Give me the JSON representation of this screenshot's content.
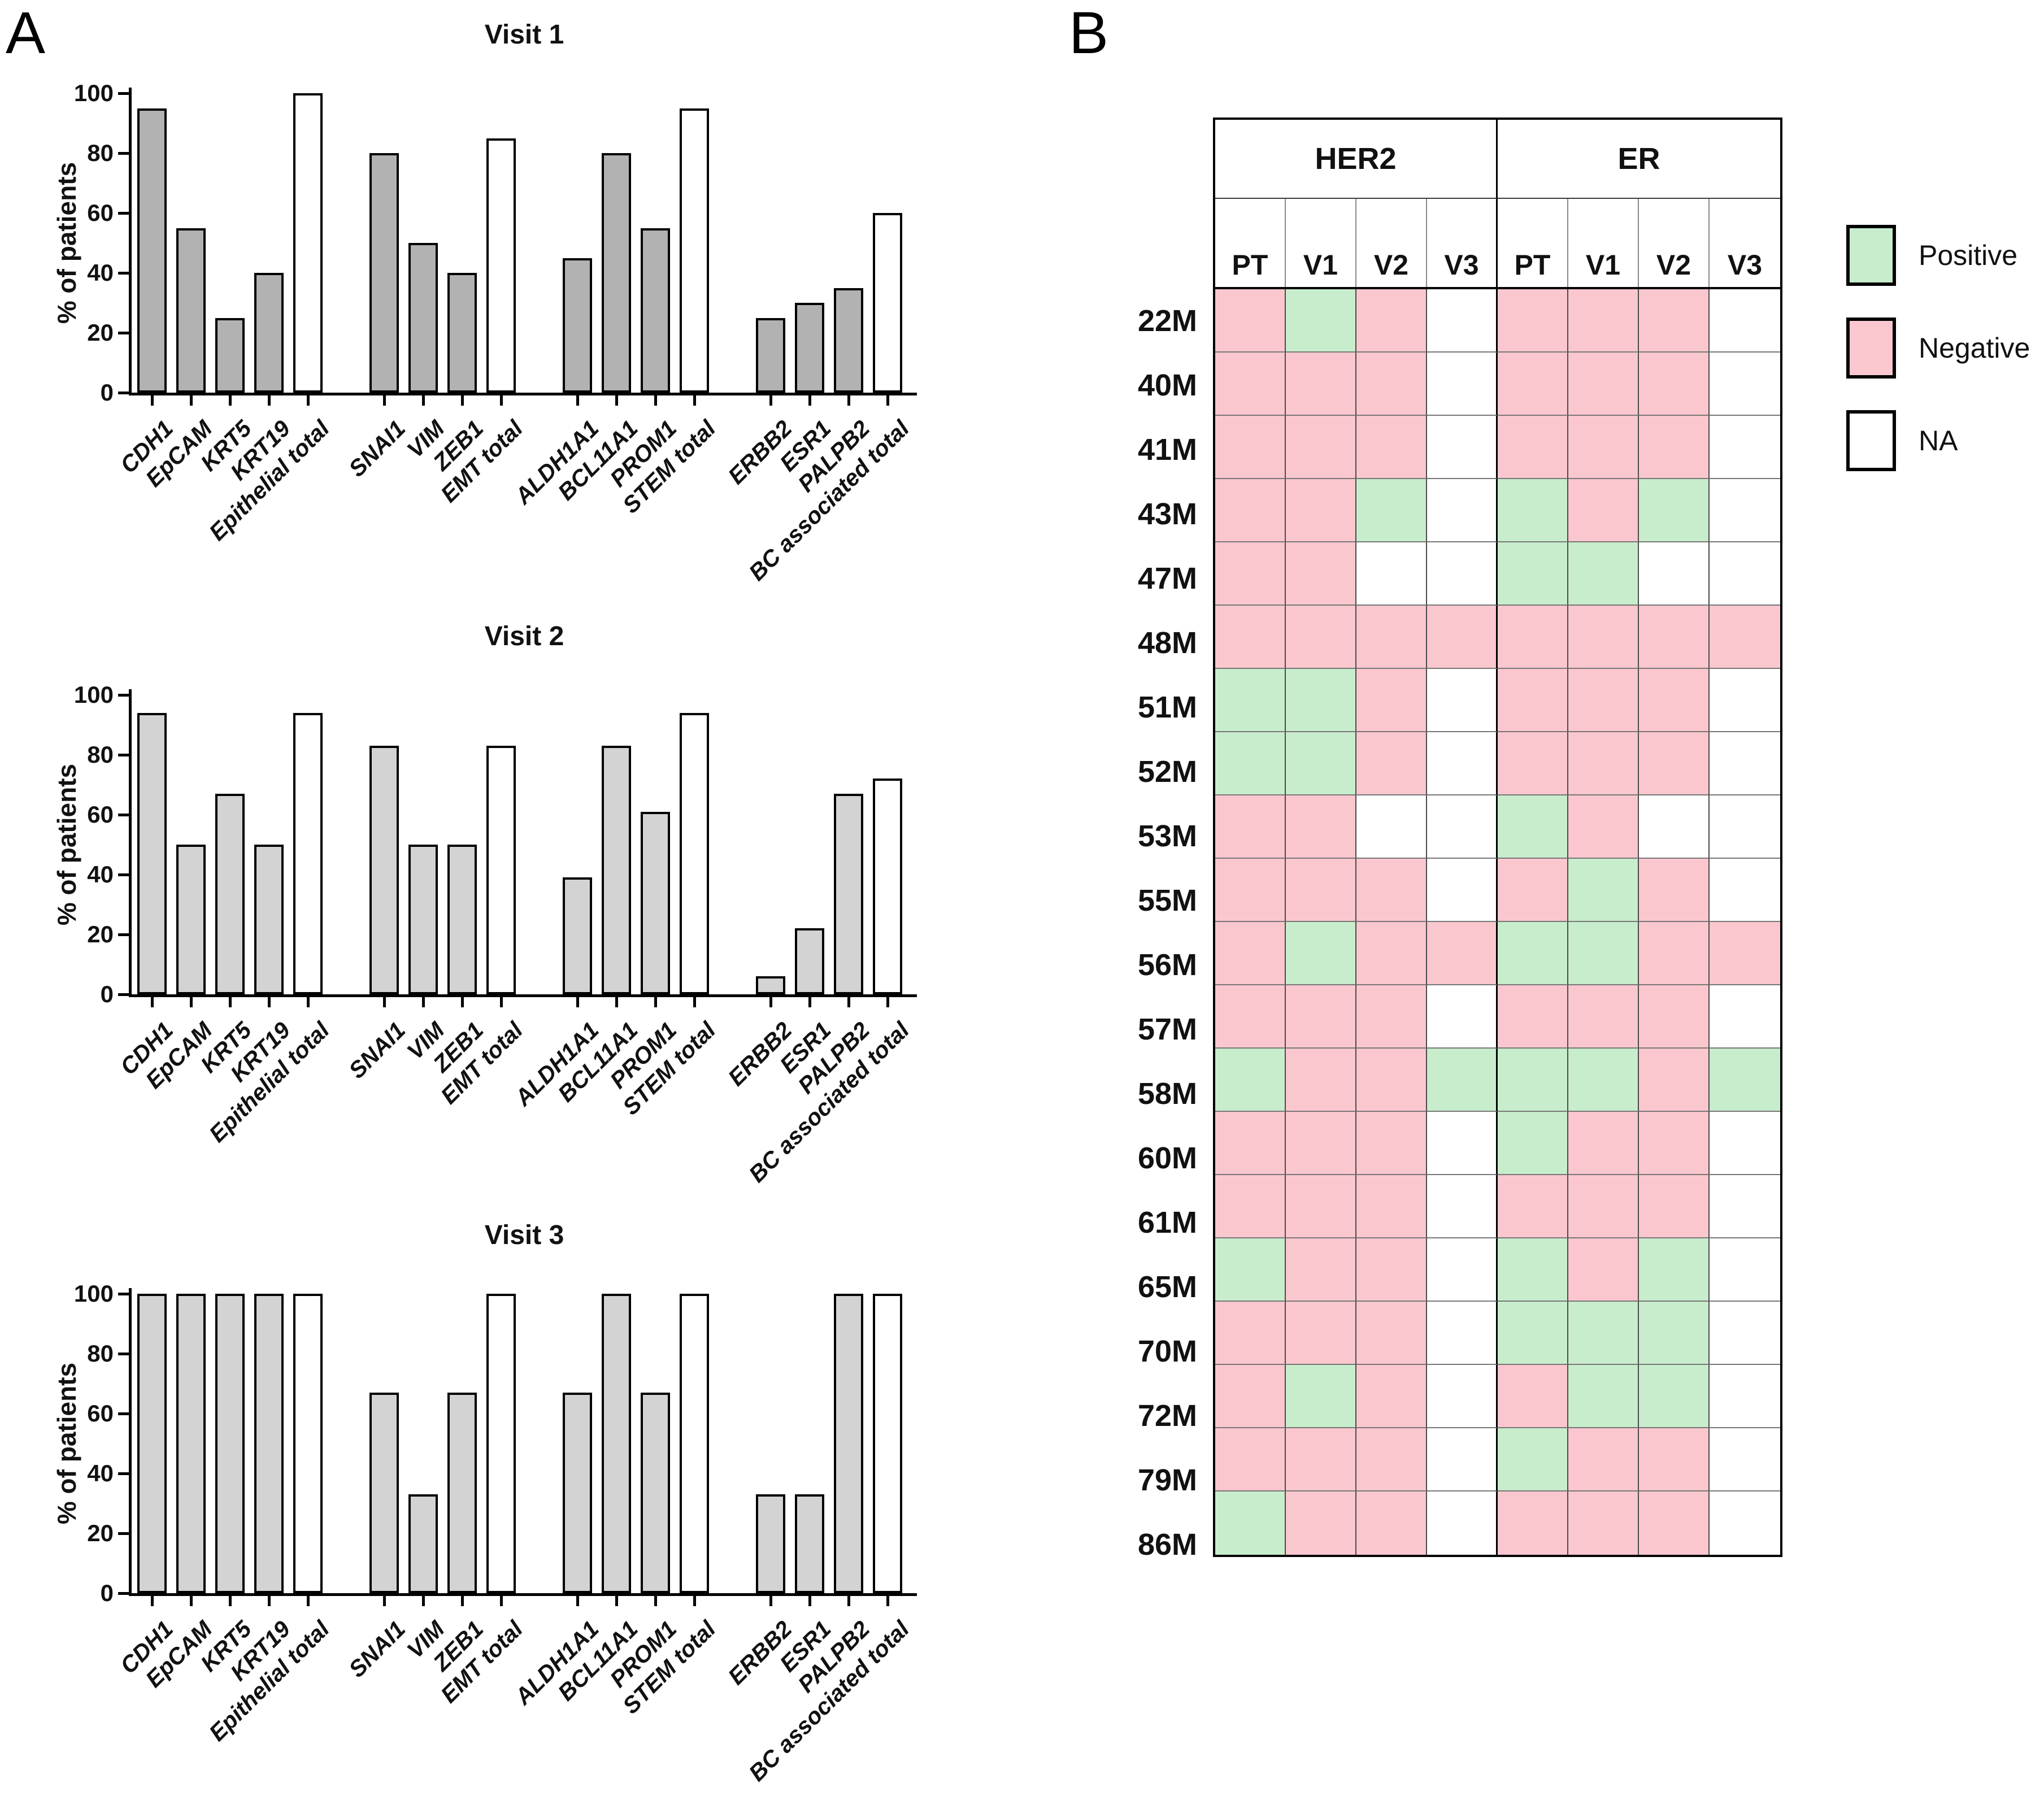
{
  "panels": {
    "a_label": "A",
    "b_label": "B"
  },
  "chart_data": [
    {
      "type": "bar",
      "title": "Visit 1",
      "ylabel": "% of patients",
      "ylim": [
        0,
        100
      ],
      "yticks": [
        0,
        20,
        40,
        60,
        80,
        100
      ],
      "grid": false,
      "bar_gray": "#b2b2b2",
      "bar_white": "#ffffff",
      "groups": [
        {
          "bars": [
            {
              "label": "CDH1",
              "value": 95,
              "fill": "gray"
            },
            {
              "label": "EpCAM",
              "value": 55,
              "fill": "gray"
            },
            {
              "label": "KRT5",
              "value": 25,
              "fill": "gray"
            },
            {
              "label": "KRT19",
              "value": 40,
              "fill": "gray"
            },
            {
              "label": "Epithelial total",
              "value": 100,
              "fill": "white"
            }
          ]
        },
        {
          "bars": [
            {
              "label": "SNAI1",
              "value": 80,
              "fill": "gray"
            },
            {
              "label": "VIM",
              "value": 50,
              "fill": "gray"
            },
            {
              "label": "ZEB1",
              "value": 40,
              "fill": "gray"
            },
            {
              "label": "EMT total",
              "value": 85,
              "fill": "white"
            }
          ]
        },
        {
          "bars": [
            {
              "label": "ALDH1A1",
              "value": 45,
              "fill": "gray"
            },
            {
              "label": "BCL11A1",
              "value": 80,
              "fill": "gray"
            },
            {
              "label": "PROM1",
              "value": 55,
              "fill": "gray"
            },
            {
              "label": "STEM total",
              "value": 95,
              "fill": "white"
            }
          ]
        },
        {
          "bars": [
            {
              "label": "ERBB2",
              "value": 25,
              "fill": "gray"
            },
            {
              "label": "ESR1",
              "value": 30,
              "fill": "gray"
            },
            {
              "label": "PALPB2",
              "value": 35,
              "fill": "gray"
            },
            {
              "label": "BC associated total",
              "value": 60,
              "fill": "white"
            }
          ]
        }
      ]
    },
    {
      "type": "bar",
      "title": "Visit 2",
      "ylabel": "% of patients",
      "ylim": [
        0,
        100
      ],
      "yticks": [
        0,
        20,
        40,
        60,
        80,
        100
      ],
      "grid": false,
      "bar_gray": "#d3d3d3",
      "bar_white": "#ffffff",
      "groups": [
        {
          "bars": [
            {
              "label": "CDH1",
              "value": 94,
              "fill": "gray"
            },
            {
              "label": "EpCAM",
              "value": 50,
              "fill": "gray"
            },
            {
              "label": "KRT5",
              "value": 67,
              "fill": "gray"
            },
            {
              "label": "KRT19",
              "value": 50,
              "fill": "gray"
            },
            {
              "label": "Epithelial total",
              "value": 94,
              "fill": "white"
            }
          ]
        },
        {
          "bars": [
            {
              "label": "SNAI1",
              "value": 83,
              "fill": "gray"
            },
            {
              "label": "VIM",
              "value": 50,
              "fill": "gray"
            },
            {
              "label": "ZEB1",
              "value": 50,
              "fill": "gray"
            },
            {
              "label": "EMT total",
              "value": 83,
              "fill": "white"
            }
          ]
        },
        {
          "bars": [
            {
              "label": "ALDH1A1",
              "value": 39,
              "fill": "gray"
            },
            {
              "label": "BCL11A1",
              "value": 83,
              "fill": "gray"
            },
            {
              "label": "PROM1",
              "value": 61,
              "fill": "gray"
            },
            {
              "label": "STEM total",
              "value": 94,
              "fill": "white"
            }
          ]
        },
        {
          "bars": [
            {
              "label": "ERBB2",
              "value": 6,
              "fill": "gray"
            },
            {
              "label": "ESR1",
              "value": 22,
              "fill": "gray"
            },
            {
              "label": "PALPB2",
              "value": 67,
              "fill": "gray"
            },
            {
              "label": "BC associated total",
              "value": 72,
              "fill": "white"
            }
          ]
        }
      ]
    },
    {
      "type": "bar",
      "title": "Visit 3",
      "ylabel": "% of patients",
      "ylim": [
        0,
        100
      ],
      "yticks": [
        0,
        20,
        40,
        60,
        80,
        100
      ],
      "grid": false,
      "bar_gray": "#d3d3d3",
      "bar_white": "#ffffff",
      "groups": [
        {
          "bars": [
            {
              "label": "CDH1",
              "value": 100,
              "fill": "gray"
            },
            {
              "label": "EpCAM",
              "value": 100,
              "fill": "gray"
            },
            {
              "label": "KRT5",
              "value": 100,
              "fill": "gray"
            },
            {
              "label": "KRT19",
              "value": 100,
              "fill": "gray"
            },
            {
              "label": "Epithelial total",
              "value": 100,
              "fill": "white"
            }
          ]
        },
        {
          "bars": [
            {
              "label": "SNAI1",
              "value": 67,
              "fill": "gray"
            },
            {
              "label": "VIM",
              "value": 33,
              "fill": "gray"
            },
            {
              "label": "ZEB1",
              "value": 67,
              "fill": "gray"
            },
            {
              "label": "EMT total",
              "value": 100,
              "fill": "white"
            }
          ]
        },
        {
          "bars": [
            {
              "label": "ALDH1A1",
              "value": 67,
              "fill": "gray"
            },
            {
              "label": "BCL11A1",
              "value": 100,
              "fill": "gray"
            },
            {
              "label": "PROM1",
              "value": 67,
              "fill": "gray"
            },
            {
              "label": "STEM total",
              "value": 100,
              "fill": "white"
            }
          ]
        },
        {
          "bars": [
            {
              "label": "ERBB2",
              "value": 33,
              "fill": "gray"
            },
            {
              "label": "ESR1",
              "value": 33,
              "fill": "gray"
            },
            {
              "label": "PALPB2",
              "value": 100,
              "fill": "gray"
            },
            {
              "label": "BC associated total",
              "value": 100,
              "fill": "white"
            }
          ]
        }
      ]
    },
    {
      "type": "heatmap",
      "col_groups": [
        "HER2",
        "ER"
      ],
      "sub_cols": [
        "PT",
        "V1",
        "V2",
        "V3"
      ],
      "legend": [
        {
          "label": "Positive",
          "code": "P",
          "color": "#c8edcc"
        },
        {
          "label": "Negative",
          "code": "N",
          "color": "#fbc7ce"
        },
        {
          "label": "NA",
          "code": "NA",
          "color": "#ffffff"
        }
      ],
      "rows": [
        {
          "patient": "22M",
          "HER2": [
            "N",
            "P",
            "N",
            "NA"
          ],
          "ER": [
            "N",
            "N",
            "N",
            "NA"
          ]
        },
        {
          "patient": "40M",
          "HER2": [
            "N",
            "N",
            "N",
            "NA"
          ],
          "ER": [
            "N",
            "N",
            "N",
            "NA"
          ]
        },
        {
          "patient": "41M",
          "HER2": [
            "N",
            "N",
            "N",
            "NA"
          ],
          "ER": [
            "N",
            "N",
            "N",
            "NA"
          ]
        },
        {
          "patient": "43M",
          "HER2": [
            "N",
            "N",
            "P",
            "NA"
          ],
          "ER": [
            "P",
            "N",
            "P",
            "NA"
          ]
        },
        {
          "patient": "47M",
          "HER2": [
            "N",
            "N",
            "NA",
            "NA"
          ],
          "ER": [
            "P",
            "P",
            "NA",
            "NA"
          ]
        },
        {
          "patient": "48M",
          "HER2": [
            "N",
            "N",
            "N",
            "N"
          ],
          "ER": [
            "N",
            "N",
            "N",
            "N"
          ]
        },
        {
          "patient": "51M",
          "HER2": [
            "P",
            "P",
            "N",
            "NA"
          ],
          "ER": [
            "N",
            "N",
            "N",
            "NA"
          ]
        },
        {
          "patient": "52M",
          "HER2": [
            "P",
            "P",
            "N",
            "NA"
          ],
          "ER": [
            "N",
            "N",
            "N",
            "NA"
          ]
        },
        {
          "patient": "53M",
          "HER2": [
            "N",
            "N",
            "NA",
            "NA"
          ],
          "ER": [
            "P",
            "N",
            "NA",
            "NA"
          ]
        },
        {
          "patient": "55M",
          "HER2": [
            "N",
            "N",
            "N",
            "NA"
          ],
          "ER": [
            "N",
            "P",
            "N",
            "NA"
          ]
        },
        {
          "patient": "56M",
          "HER2": [
            "N",
            "P",
            "N",
            "N"
          ],
          "ER": [
            "P",
            "P",
            "N",
            "N"
          ]
        },
        {
          "patient": "57M",
          "HER2": [
            "N",
            "N",
            "N",
            "NA"
          ],
          "ER": [
            "N",
            "N",
            "N",
            "NA"
          ]
        },
        {
          "patient": "58M",
          "HER2": [
            "P",
            "N",
            "N",
            "P"
          ],
          "ER": [
            "P",
            "P",
            "N",
            "P"
          ]
        },
        {
          "patient": "60M",
          "HER2": [
            "N",
            "N",
            "N",
            "NA"
          ],
          "ER": [
            "P",
            "N",
            "N",
            "NA"
          ]
        },
        {
          "patient": "61M",
          "HER2": [
            "N",
            "N",
            "N",
            "NA"
          ],
          "ER": [
            "N",
            "N",
            "N",
            "NA"
          ]
        },
        {
          "patient": "65M",
          "HER2": [
            "P",
            "N",
            "N",
            "NA"
          ],
          "ER": [
            "P",
            "N",
            "P",
            "NA"
          ]
        },
        {
          "patient": "70M",
          "HER2": [
            "N",
            "N",
            "N",
            "NA"
          ],
          "ER": [
            "P",
            "P",
            "P",
            "NA"
          ]
        },
        {
          "patient": "72M",
          "HER2": [
            "N",
            "P",
            "N",
            "NA"
          ],
          "ER": [
            "N",
            "P",
            "P",
            "NA"
          ]
        },
        {
          "patient": "79M",
          "HER2": [
            "N",
            "N",
            "N",
            "NA"
          ],
          "ER": [
            "P",
            "N",
            "N",
            "NA"
          ]
        },
        {
          "patient": "86M",
          "HER2": [
            "P",
            "N",
            "N",
            "NA"
          ],
          "ER": [
            "N",
            "N",
            "N",
            "NA"
          ]
        }
      ]
    }
  ]
}
